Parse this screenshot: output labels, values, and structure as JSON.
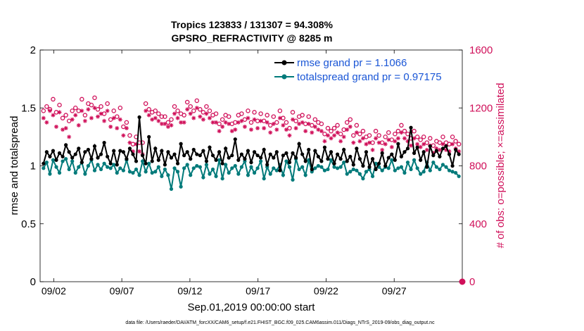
{
  "chart_data": {
    "type": "line",
    "title_line1": "Tropics 123833 / 131307 = 94.308%",
    "title_line2": "GPSRO_REFRACTIVITY @ 8285 m",
    "ylabel_left": "rmse and totalspread",
    "ylabel_right": "# of obs: o=possible; ×=assimilated",
    "xlabel": "Sep.01,2019 00:00:00 start",
    "footnote": "data file: /Users/raeder/DAI/ATM_forcXX/CAM6_setup/f.e21.FHIST_BGC.f09_025.CAM6assim.011/Diags_NTrS_2019-09/obs_diag_output.nc",
    "ylim_left": [
      0,
      2
    ],
    "ylim_right": [
      0,
      1600
    ],
    "xlim_days": [
      0,
      31
    ],
    "left_ticks": [
      "0",
      "0.5",
      "1",
      "1.5",
      "2"
    ],
    "right_ticks": [
      "0",
      "400",
      "800",
      "1200",
      "1600"
    ],
    "x_ticks": [
      {
        "day": 1,
        "label": "09/02"
      },
      {
        "day": 6,
        "label": "09/07"
      },
      {
        "day": 11,
        "label": "09/12"
      },
      {
        "day": 16,
        "label": "09/17"
      },
      {
        "day": 21,
        "label": "09/22"
      },
      {
        "day": 26,
        "label": "09/27"
      }
    ],
    "legend": [
      {
        "label": "rmse grand pr = 1.1066",
        "color": "#000000"
      },
      {
        "label": "totalspread grand pr = 0.97175",
        "color": "#007a7a"
      }
    ],
    "series": [
      {
        "name": "rmse",
        "color": "#000000",
        "values": [
          1.02,
          1.12,
          1.08,
          1.13,
          1.05,
          1.11,
          1.08,
          1.18,
          1.12,
          1.07,
          1.1,
          1.15,
          1.03,
          1.12,
          1.14,
          1.06,
          1.17,
          1.07,
          1.1,
          1.2,
          1.08,
          1.02,
          1.13,
          1.01,
          1.13,
          1.12,
          1.06,
          1.15,
          1.1,
          1.04,
          1.42,
          1.09,
          1.02,
          1.25,
          1.04,
          1.15,
          1.05,
          1.13,
          1.01,
          1.12,
          1.07,
          1.1,
          1.02,
          1.19,
          1.09,
          1.12,
          1.06,
          1.14,
          1.1,
          1.09,
          1.13,
          1.04,
          1.16,
          1.09,
          1.05,
          1.12,
          1.02,
          1.15,
          1.07,
          1.09,
          1.23,
          1.05,
          1.1,
          1.06,
          1.13,
          1.03,
          1.12,
          1.09,
          1.07,
          1.14,
          1.01,
          1.1,
          1.07,
          1.12,
          0.96,
          1.09,
          1.11,
          1.03,
          1.11,
          1.07,
          1.19,
          1.1,
          1.04,
          1.14,
          0.97,
          1.13,
          1.08,
          1.04,
          1.16,
          1.06,
          1.12,
          1.02,
          1.1,
          1.06,
          1.14,
          1.04,
          1.08,
          1.01,
          1.15,
          1.06,
          1.0,
          1.12,
          0.99,
          1.06,
          0.97,
          1.02,
          1.11,
          1.0,
          1.07,
          1.1,
          1.05,
          1.19,
          1.08,
          1.12,
          1.15,
          1.33,
          1.11,
          1.16,
          1.05,
          1.12,
          0.99,
          1.17,
          1.09,
          1.13,
          1.08,
          1.15,
          1.17,
          1.1,
          1.0,
          1.14,
          1.1
        ]
      },
      {
        "name": "totalspread",
        "color": "#007a7a",
        "values": [
          0.98,
          1.03,
          0.93,
          1.05,
          0.99,
          0.94,
          1.04,
          1.06,
          0.97,
          1.04,
          0.94,
          0.99,
          1.03,
          0.93,
          1.0,
          1.05,
          0.96,
          1.01,
          0.97,
          1.02,
          0.99,
          0.98,
          1.01,
          0.94,
          0.98,
          0.96,
          1.05,
          0.95,
          0.94,
          0.97,
          0.92,
          1.04,
          0.95,
          1.02,
          0.94,
          0.95,
          0.99,
          0.91,
          0.97,
          0.92,
          0.8,
          0.98,
          0.95,
          0.82,
          0.98,
          1.01,
          0.92,
          0.98,
          1.0,
          0.99,
          0.9,
          1.01,
          0.93,
          0.97,
          0.91,
          1.05,
          0.89,
          1.01,
          0.94,
          0.98,
          1.0,
          0.93,
          0.99,
          1.04,
          0.92,
          0.99,
          0.94,
          0.98,
          1.04,
          0.89,
          0.99,
          0.93,
          0.98,
          0.96,
          1.01,
          0.92,
          1.04,
          0.99,
          0.88,
          1.06,
          0.97,
          0.99,
          0.92,
          1.05,
          0.95,
          0.98,
          1.0,
          0.99,
          0.96,
          0.97,
          1.05,
          0.99,
          0.98,
          0.99,
          1.03,
          0.93,
          0.95,
          0.97,
          0.96,
          0.93,
          0.89,
          0.95,
          0.97,
          0.91,
          1.02,
          0.99,
          0.96,
          0.99,
          0.98,
          1.05,
          0.96,
          0.98,
          0.99,
          0.94,
          1.03,
          0.97,
          1.05,
          0.98,
          0.93,
          0.95,
          1.03,
          0.96,
          1.03,
          0.99,
          0.97,
          1.01,
          0.99,
          0.96,
          0.95,
          0.94,
          0.91
        ]
      },
      {
        "name": "# of obs possible",
        "color": "#d0105a",
        "marker": "o",
        "values": [
          1180,
          1210,
          1190,
          1260,
          1170,
          1220,
          1130,
          1150,
          1110,
          1180,
          1200,
          1180,
          1260,
          1150,
          1230,
          1220,
          1270,
          1190,
          1210,
          1160,
          1230,
          1120,
          1180,
          1140,
          1200,
          1070,
          1100,
          1010,
          950,
          1000,
          960,
          960,
          1230,
          1190,
          1170,
          1180,
          1160,
          1140,
          1140,
          1100,
          1120,
          1210,
          1180,
          1160,
          1150,
          1240,
          1210,
          1180,
          1250,
          1190,
          1170,
          1210,
          1180,
          1150,
          1160,
          1090,
          1120,
          1150,
          1140,
          1090,
          1100,
          1150,
          1160,
          1120,
          1180,
          1100,
          1170,
          1110,
          1160,
          1110,
          1150,
          1080,
          1140,
          1100,
          1180,
          1130,
          1100,
          1060,
          1170,
          1110,
          1140,
          1150,
          1090,
          1140,
          1080,
          1120,
          1100,
          1090,
          1020,
          1060,
          1040,
          1060,
          1080,
          1020,
          1050,
          1100,
          1120,
          1010,
          1080,
          1020,
          1040,
          1000,
          1010,
          960,
          1040,
          1010,
          960,
          1000,
          1030,
          980,
          1020,
          1040,
          1080,
          1040,
          1020,
          990,
          1040,
          1000,
          980,
          1000,
          960,
          990,
          940,
          970,
          960,
          1000,
          960,
          950,
          1000,
          970,
          950
        ]
      },
      {
        "name": "# of obs assimilated",
        "color": "#d0105a",
        "marker": "x",
        "values": [
          1130,
          1100,
          1180,
          1150,
          1070,
          1170,
          1050,
          1060,
          1000,
          1120,
          1150,
          1080,
          1180,
          1110,
          1190,
          1130,
          1200,
          1140,
          1160,
          1110,
          1180,
          1070,
          1130,
          1060,
          1120,
          1010,
          1060,
          960,
          900,
          950,
          900,
          880,
          1180,
          1150,
          1120,
          1130,
          1110,
          1090,
          1090,
          1070,
          1080,
          1160,
          1130,
          1100,
          1100,
          1190,
          1160,
          1130,
          1200,
          1140,
          1120,
          1160,
          1130,
          1100,
          1100,
          1040,
          1070,
          1100,
          1090,
          1040,
          1050,
          1100,
          1110,
          1070,
          1130,
          1050,
          1120,
          1060,
          1110,
          1060,
          1100,
          1030,
          1090,
          1050,
          1130,
          1080,
          1050,
          1010,
          1120,
          1060,
          1090,
          1100,
          1040,
          1090,
          1030,
          1070,
          1050,
          1040,
          970,
          1010,
          990,
          1010,
          1030,
          970,
          1000,
          1050,
          1070,
          960,
          1030,
          970,
          990,
          950,
          960,
          910,
          990,
          960,
          910,
          950,
          980,
          930,
          970,
          990,
          1030,
          990,
          970,
          940,
          990,
          950,
          930,
          950,
          910,
          940,
          890,
          920,
          910,
          950,
          910,
          900,
          950,
          920,
          900
        ]
      }
    ]
  }
}
